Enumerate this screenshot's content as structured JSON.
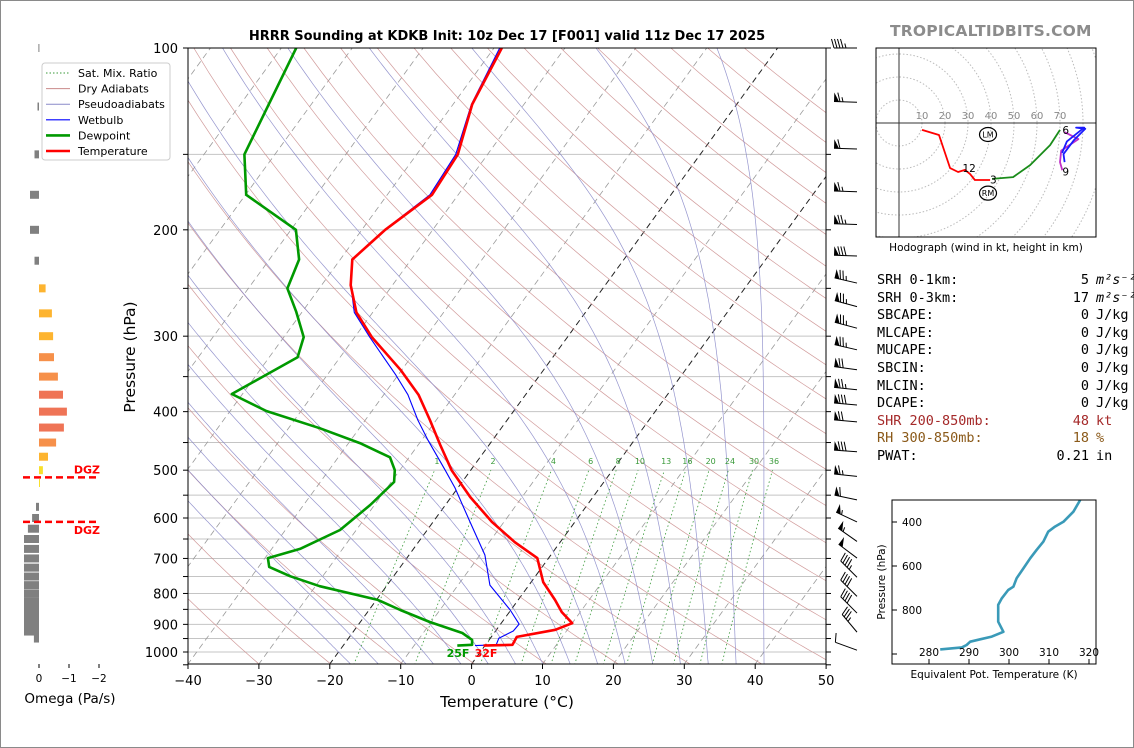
{
  "title": "HRRR Sounding at KDKB Init: 10z Dec 17 [F001] valid 11z Dec 17 2025",
  "watermark": "TROPICALTIDBITS.COM",
  "colors": {
    "temperature": "#ff0000",
    "dewpoint": "#009900",
    "wetbulb": "#0000ff",
    "dry_adiabat": "#c98a8a",
    "pseudoadiabat": "#8a8ac9",
    "mixing_ratio": "#3a9a3a",
    "thetae": "#3a9ab8",
    "omega_down": "#808080",
    "dgz": "#ff0000"
  },
  "legend": [
    "Sat. Mix. Ratio",
    "Dry Adiabats",
    "Pseudoadiabats",
    "Wetbulb",
    "Dewpoint",
    "Temperature"
  ],
  "surface_labels": {
    "dewpoint": "25F",
    "temperature": "32F"
  },
  "stats": [
    {
      "label": "SRH 0-1km:",
      "value": "5",
      "unit": "m²s⁻²",
      "color": "#000000"
    },
    {
      "label": "SRH 0-3km:",
      "value": "17",
      "unit": "m²s⁻²",
      "color": "#000000"
    },
    {
      "label": "SBCAPE:",
      "value": "0",
      "unit": "J/kg",
      "color": "#000000"
    },
    {
      "label": "MLCAPE:",
      "value": "0",
      "unit": "J/kg",
      "color": "#000000"
    },
    {
      "label": "MUCAPE:",
      "value": "0",
      "unit": "J/kg",
      "color": "#000000"
    },
    {
      "label": "SBCIN:",
      "value": "0",
      "unit": "J/kg",
      "color": "#000000"
    },
    {
      "label": "MLCIN:",
      "value": "0",
      "unit": "J/kg",
      "color": "#000000"
    },
    {
      "label": "DCAPE:",
      "value": "0",
      "unit": "J/kg",
      "color": "#000000"
    },
    {
      "label": "SHR 200-850mb:",
      "value": "48",
      "unit": "kt",
      "color": "#a52a2a"
    },
    {
      "label": "RH 300-850mb:",
      "value": "18",
      "unit": "%",
      "color": "#8b5a1a"
    },
    {
      "label": "PWAT:",
      "value": "0.21",
      "unit": "in",
      "color": "#000000"
    }
  ],
  "chart_data": [
    {
      "type": "line",
      "name": "skewt",
      "xlabel": "Temperature (°C)",
      "ylabel": "Pressure (hPa)",
      "xlim": [
        -40,
        50
      ],
      "ylim": [
        1050,
        100
      ],
      "yscale": "log",
      "xticks": [
        -40,
        -30,
        -20,
        -10,
        0,
        10,
        20,
        30,
        40,
        50
      ],
      "yticks": [
        100,
        200,
        300,
        400,
        500,
        600,
        700,
        800,
        900,
        1000
      ],
      "mixing_ratio_labels": [
        "1",
        "2",
        "4",
        "6",
        "8",
        "10",
        "13",
        "16",
        "20",
        "24",
        "30",
        "36"
      ],
      "highlight_isotherms": [
        0,
        -20
      ],
      "grid": true,
      "temperature": [
        [
          100,
          -58.9
        ],
        [
          124,
          -57.3
        ],
        [
          150,
          -54.2
        ],
        [
          175,
          -53.7
        ],
        [
          200,
          -56.7
        ],
        [
          224,
          -58.3
        ],
        [
          247,
          -55.9
        ],
        [
          274,
          -52.3
        ],
        [
          301,
          -47.6
        ],
        [
          341,
          -40.2
        ],
        [
          375,
          -35.1
        ],
        [
          413,
          -30.9
        ],
        [
          454,
          -26.9
        ],
        [
          500,
          -22.7
        ],
        [
          554,
          -17.3
        ],
        [
          609,
          -11.7
        ],
        [
          658,
          -6.4
        ],
        [
          699,
          -1.6
        ],
        [
          766,
          1.7
        ],
        [
          820,
          5.2
        ],
        [
          859,
          7.4
        ],
        [
          896,
          10.0
        ],
        [
          919,
          8.3
        ],
        [
          944,
          3.6
        ],
        [
          973,
          3.8
        ],
        [
          976,
          -0.2
        ]
      ],
      "dewpoint": [
        [
          100,
          -87.9
        ],
        [
          150,
          -84.3
        ],
        [
          175,
          -79.9
        ],
        [
          200,
          -69.3
        ],
        [
          224,
          -65.8
        ],
        [
          250,
          -64.5
        ],
        [
          273,
          -60.9
        ],
        [
          301,
          -57.2
        ],
        [
          325,
          -56.0
        ],
        [
          374,
          -61.5
        ],
        [
          399,
          -54.9
        ],
        [
          426,
          -45.6
        ],
        [
          451,
          -38.4
        ],
        [
          476,
          -32.7
        ],
        [
          500,
          -30.7
        ],
        [
          523,
          -29.6
        ],
        [
          571,
          -30.6
        ],
        [
          628,
          -32.3
        ],
        [
          675,
          -36.0
        ],
        [
          699,
          -39.6
        ],
        [
          723,
          -38.5
        ],
        [
          749,
          -34.6
        ],
        [
          778,
          -29.4
        ],
        [
          820,
          -19.8
        ],
        [
          852,
          -15.6
        ],
        [
          892,
          -10.2
        ],
        [
          930,
          -4.5
        ],
        [
          955,
          -2.4
        ],
        [
          973,
          -1.9
        ],
        [
          976,
          -3.9
        ]
      ],
      "wetbulb": [
        [
          100,
          -59.2
        ],
        [
          124,
          -57.4
        ],
        [
          150,
          -54.5
        ],
        [
          175,
          -54.0
        ],
        [
          200,
          -56.8
        ],
        [
          224,
          -58.3
        ],
        [
          246,
          -56.0
        ],
        [
          274,
          -52.6
        ],
        [
          301,
          -47.9
        ],
        [
          348,
          -40.3
        ],
        [
          375,
          -36.6
        ],
        [
          413,
          -32.6
        ],
        [
          446,
          -29.1
        ],
        [
          500,
          -23.6
        ],
        [
          535,
          -20.4
        ],
        [
          609,
          -14.8
        ],
        [
          691,
          -9.3
        ],
        [
          775,
          -5.5
        ],
        [
          852,
          -0.1
        ],
        [
          899,
          2.6
        ],
        [
          923,
          2.5
        ],
        [
          949,
          1.2
        ],
        [
          973,
          1.5
        ],
        [
          976,
          -1.4
        ]
      ],
      "wind_barbs": [
        {
          "p": 100,
          "speed_kt": 45,
          "dir": 270
        },
        {
          "p": 123,
          "speed_kt": 65,
          "dir": 272
        },
        {
          "p": 147,
          "speed_kt": 60,
          "dir": 272
        },
        {
          "p": 173,
          "speed_kt": 65,
          "dir": 272
        },
        {
          "p": 196,
          "speed_kt": 75,
          "dir": 272
        },
        {
          "p": 221,
          "speed_kt": 80,
          "dir": 272
        },
        {
          "p": 245,
          "speed_kt": 75,
          "dir": 283
        },
        {
          "p": 268,
          "speed_kt": 75,
          "dir": 285
        },
        {
          "p": 291,
          "speed_kt": 75,
          "dir": 285
        },
        {
          "p": 316,
          "speed_kt": 75,
          "dir": 283
        },
        {
          "p": 341,
          "speed_kt": 70,
          "dir": 278
        },
        {
          "p": 368,
          "speed_kt": 75,
          "dir": 276
        },
        {
          "p": 390,
          "speed_kt": 80,
          "dir": 275
        },
        {
          "p": 416,
          "speed_kt": 70,
          "dir": 275
        },
        {
          "p": 466,
          "speed_kt": 80,
          "dir": 274
        },
        {
          "p": 512,
          "speed_kt": 65,
          "dir": 276
        },
        {
          "p": 560,
          "speed_kt": 60,
          "dir": 282
        },
        {
          "p": 609,
          "speed_kt": 55,
          "dir": 295
        },
        {
          "p": 656,
          "speed_kt": 55,
          "dir": 305
        },
        {
          "p": 699,
          "speed_kt": 50,
          "dir": 307
        },
        {
          "p": 752,
          "speed_kt": 45,
          "dir": 315
        },
        {
          "p": 809,
          "speed_kt": 40,
          "dir": 315
        },
        {
          "p": 862,
          "speed_kt": 40,
          "dir": 315
        },
        {
          "p": 927,
          "speed_kt": 35,
          "dir": 320
        },
        {
          "p": 993,
          "speed_kt": 10,
          "dir": 290
        }
      ]
    },
    {
      "type": "line",
      "name": "hodograph",
      "xlabel": "Hodograph (wind in kt, height in km)",
      "ring_labels": [
        "10",
        "20",
        "30",
        "40",
        "50",
        "60",
        "70"
      ],
      "segments": [
        {
          "layer": "0-3 km",
          "color": "#ff0000",
          "uv": [
            [
              10,
              -3
            ],
            [
              17.4,
              -5.2
            ],
            [
              22.2,
              -19.6
            ],
            [
              25.7,
              -21.3
            ],
            [
              28.7,
              -20.4
            ],
            [
              30.9,
              -22.2
            ],
            [
              33,
              -24.8
            ],
            [
              39.6,
              -24.8
            ]
          ]
        },
        {
          "layer": "3-6 km",
          "color": "#1a8c1a",
          "uv": [
            [
              40.5,
              -24.3
            ],
            [
              49.6,
              -23.5
            ],
            [
              57,
              -18.3
            ],
            [
              65.7,
              -9.6
            ],
            [
              70,
              -3
            ]
          ]
        },
        {
          "layer": "6-9 km",
          "color": "#c030c8",
          "uv": [
            [
              72,
              -4
            ],
            [
              78,
              -7
            ],
            [
              70.5,
              -12
            ],
            [
              70,
              -17
            ],
            [
              71,
              -20.5
            ]
          ]
        },
        {
          "layer": "9-12 km",
          "color": "#1a1aff",
          "uv": [
            [
              70.9,
              -13
            ],
            [
              73,
              -8
            ],
            [
              80.5,
              -2
            ],
            [
              77,
              -2
            ],
            [
              81,
              -2.5
            ],
            [
              76,
              -7.5
            ],
            [
              71.5,
              -13.5
            ],
            [
              72,
              -17
            ]
          ]
        }
      ],
      "height_labels": [
        {
          "text": "6",
          "uv": [
            72.5,
            -3
          ]
        },
        {
          "text": "9",
          "uv": [
            72.5,
            -21
          ]
        },
        {
          "text": "12",
          "uv": [
            30.5,
            -19.5
          ]
        },
        {
          "text": "3",
          "uv": [
            41,
            -24.5
          ]
        }
      ],
      "storm_motion": [
        {
          "text": "LM",
          "uv": [
            38.7,
            -5
          ]
        },
        {
          "text": "RM",
          "uv": [
            38.7,
            -30.5
          ]
        }
      ]
    },
    {
      "type": "line",
      "name": "thetae",
      "xlabel": "Equivalent Pot. Temperature (K)",
      "ylabel": "Pressure (hPa)",
      "xlim": [
        271,
        322
      ],
      "ylim": [
        1045,
        300
      ],
      "xticks": [
        280,
        290,
        300,
        310,
        320
      ],
      "yticks": [
        400,
        600,
        800,
        1000
      ],
      "ytick_labels": [
        "400",
        "600",
        "800",
        ""
      ],
      "points": [
        [
          300,
          317.8
        ],
        [
          353,
          316.1
        ],
        [
          399,
          313.6
        ],
        [
          421,
          311.5
        ],
        [
          444,
          309.8
        ],
        [
          489,
          308.6
        ],
        [
          527,
          306.9
        ],
        [
          565,
          305.3
        ],
        [
          611,
          303.6
        ],
        [
          656,
          301.9
        ],
        [
          694,
          301.1
        ],
        [
          709,
          299.8
        ],
        [
          747,
          298.2
        ],
        [
          777,
          297.3
        ],
        [
          853,
          297.3
        ],
        [
          899,
          298.6
        ],
        [
          921,
          295.7
        ],
        [
          933,
          292.8
        ],
        [
          944,
          290.3
        ],
        [
          959,
          289.4
        ],
        [
          970,
          288.2
        ],
        [
          979,
          282.8
        ]
      ]
    },
    {
      "type": "bar",
      "name": "omega",
      "xlabel": "Omega (Pa/s)",
      "xticks": [
        0,
        -1,
        -2
      ],
      "xtick_labels": [
        "0",
        "−1",
        "−2"
      ],
      "dgz_label": "DGZ",
      "dgz_pressures": [
        538,
        593
      ],
      "levels": [
        [
          100,
          0.02
        ],
        [
          125,
          0.05
        ],
        [
          150,
          0.15
        ],
        [
          175,
          0.3
        ],
        [
          200,
          0.3
        ],
        [
          225,
          0.15
        ],
        [
          250,
          -0.22
        ],
        [
          275,
          -0.43
        ],
        [
          300,
          -0.47
        ],
        [
          325,
          -0.5
        ],
        [
          350,
          -0.63
        ],
        [
          375,
          -0.8
        ],
        [
          400,
          -0.93
        ],
        [
          425,
          -0.83
        ],
        [
          450,
          -0.57
        ],
        [
          475,
          -0.3
        ],
        [
          500,
          -0.13
        ],
        [
          525,
          -0.02
        ],
        [
          575,
          0.1
        ],
        [
          600,
          0.23
        ],
        [
          625,
          0.37
        ],
        [
          650,
          0.5
        ],
        [
          675,
          0.5
        ],
        [
          700,
          0.5
        ],
        [
          725,
          0.5
        ],
        [
          750,
          0.5
        ],
        [
          775,
          0.5
        ],
        [
          800,
          0.5
        ],
        [
          825,
          0.5
        ],
        [
          850,
          0.5
        ],
        [
          875,
          0.5
        ],
        [
          900,
          0.5
        ],
        [
          925,
          0.5
        ],
        [
          950,
          0.17
        ]
      ]
    }
  ]
}
